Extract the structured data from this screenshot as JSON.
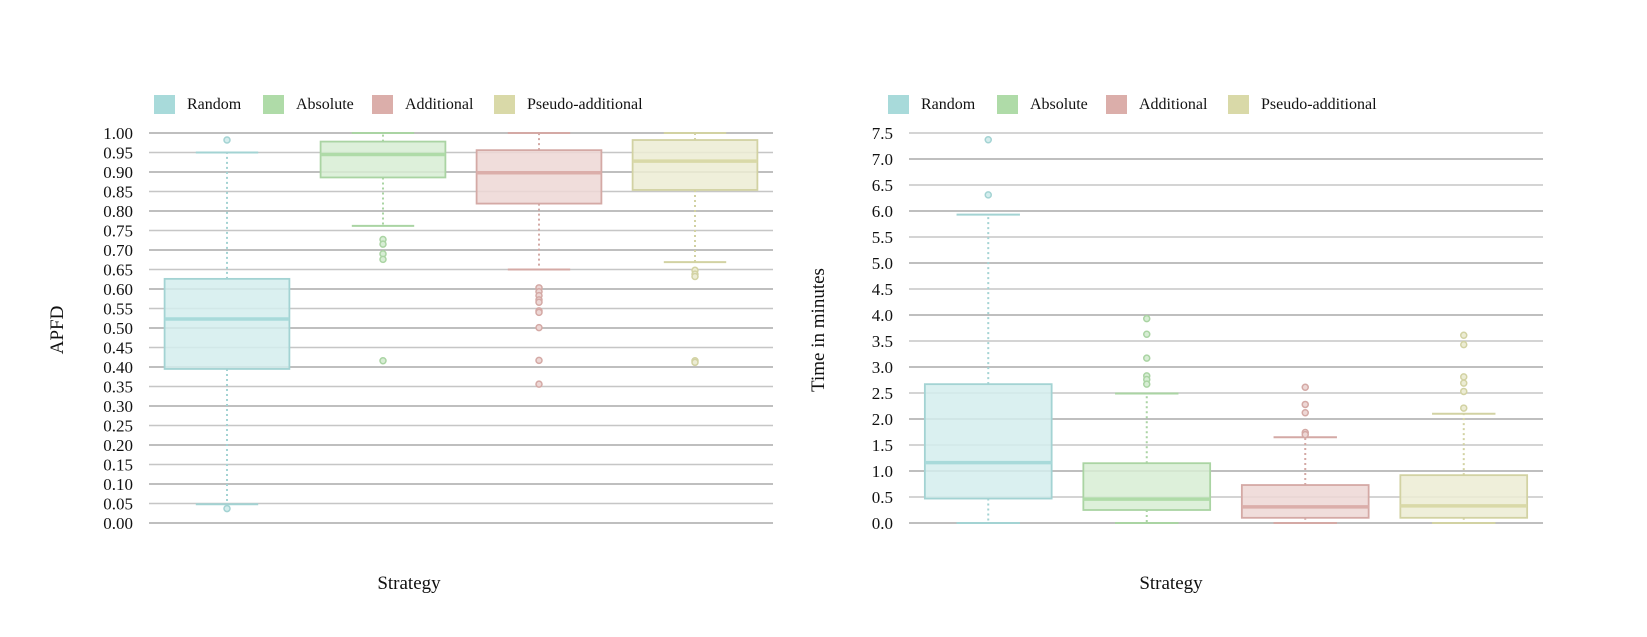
{
  "chart_data": [
    {
      "type": "box",
      "title": "",
      "xlabel": "Strategy",
      "ylabel": "APFD",
      "ylim": [
        0,
        1.0
      ],
      "ytick_step": 0.05,
      "ytick_decimals": 2,
      "grid": true,
      "legend": {
        "placement": "top-left",
        "entries": [
          "Random",
          "Absolute",
          "Additional",
          "Pseudo-additional"
        ]
      },
      "categories": [
        "Random",
        "Absolute",
        "Additional",
        "Pseudo-additional"
      ],
      "series": [
        {
          "name": "Random",
          "color": "#a8dada",
          "whisker_low": 0.048,
          "q1": 0.395,
          "median": 0.523,
          "q3": 0.626,
          "whisker_high": 0.95,
          "outliers": [
            0.982,
            0.037
          ]
        },
        {
          "name": "Absolute",
          "color": "#afdba8",
          "whisker_low": 0.762,
          "q1": 0.886,
          "median": 0.945,
          "q3": 0.978,
          "whisker_high": 1.0,
          "outliers": [
            0.727,
            0.715,
            0.69,
            0.676,
            0.416
          ]
        },
        {
          "name": "Additional",
          "color": "#dbaeaa",
          "whisker_low": 0.65,
          "q1": 0.819,
          "median": 0.898,
          "q3": 0.956,
          "whisker_high": 1.0,
          "outliers": [
            0.603,
            0.593,
            0.583,
            0.572,
            0.566,
            0.544,
            0.54,
            0.501,
            0.417,
            0.356
          ]
        },
        {
          "name": "Pseudo-additional",
          "color": "#d9d9a8",
          "whisker_low": 0.669,
          "q1": 0.854,
          "median": 0.928,
          "q3": 0.982,
          "whisker_high": 1.0,
          "outliers": [
            0.648,
            0.638,
            0.632,
            0.416,
            0.412
          ]
        }
      ]
    },
    {
      "type": "box",
      "title": "",
      "xlabel": "Strategy",
      "ylabel": "Time in minutes",
      "ylim": [
        0,
        7.5
      ],
      "ytick_step": 0.5,
      "ytick_decimals": 1,
      "grid": true,
      "legend": {
        "placement": "top-left",
        "entries": [
          "Random",
          "Absolute",
          "Additional",
          "Pseudo-additional"
        ]
      },
      "categories": [
        "Random",
        "Absolute",
        "Additional",
        "Pseudo-additional"
      ],
      "series": [
        {
          "name": "Random",
          "color": "#a8dada",
          "whisker_low": 0.0,
          "q1": 0.47,
          "median": 1.16,
          "q3": 2.67,
          "whisker_high": 5.93,
          "outliers": [
            6.31,
            7.37
          ]
        },
        {
          "name": "Absolute",
          "color": "#afdba8",
          "whisker_low": 0.0,
          "q1": 0.25,
          "median": 0.46,
          "q3": 1.15,
          "whisker_high": 2.49,
          "outliers": [
            3.93,
            3.63,
            3.17,
            2.83,
            2.76,
            2.67
          ]
        },
        {
          "name": "Additional",
          "color": "#dbaeaa",
          "whisker_low": 0.0,
          "q1": 0.1,
          "median": 0.31,
          "q3": 0.73,
          "whisker_high": 1.65,
          "outliers": [
            2.61,
            2.28,
            2.12,
            1.74,
            1.7
          ]
        },
        {
          "name": "Pseudo-additional",
          "color": "#d9d9a8",
          "whisker_low": 0.0,
          "q1": 0.1,
          "median": 0.33,
          "q3": 0.92,
          "whisker_high": 2.1,
          "outliers": [
            3.61,
            3.43,
            2.81,
            2.69,
            2.53,
            2.21
          ]
        }
      ]
    }
  ]
}
